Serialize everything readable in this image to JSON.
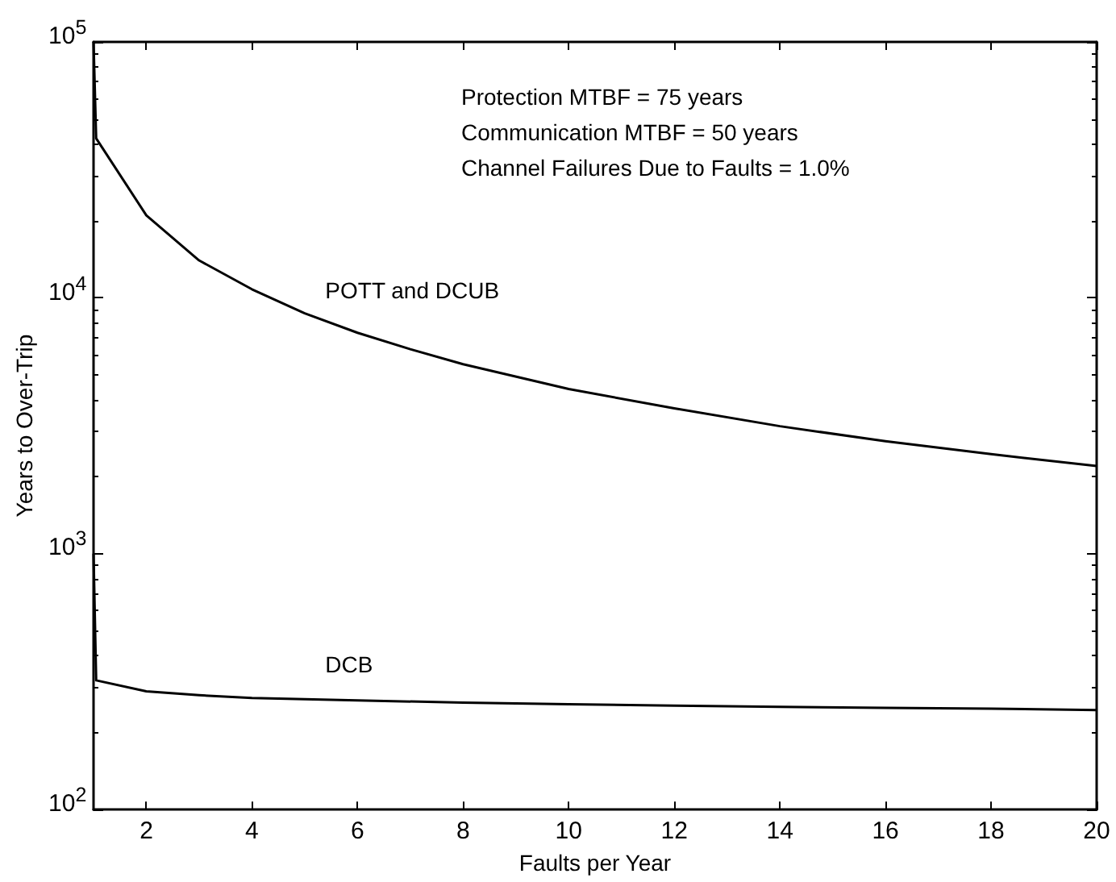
{
  "chart_data": {
    "type": "line",
    "xlabel": "Faults per Year",
    "ylabel": "Years to Over-Trip",
    "annotations": [
      "Protection MTBF = 75 years",
      "Communication MTBF = 50 years",
      "Channel Failures Due to Faults = 1.0%"
    ],
    "series": [
      {
        "name": "POTT and DCUB",
        "color": "#000000",
        "x": [
          1,
          1.05,
          2,
          3,
          4,
          5,
          6,
          7,
          8,
          10,
          12,
          14,
          16,
          18,
          20
        ],
        "values": [
          100000,
          42000,
          21000,
          14000,
          10800,
          8700,
          7300,
          6300,
          5500,
          4400,
          3700,
          3150,
          2750,
          2450,
          2200
        ]
      },
      {
        "name": "DCB",
        "color": "#000000",
        "x": [
          1,
          1.05,
          2,
          3,
          4,
          6,
          8,
          10,
          12,
          14,
          16,
          18,
          20
        ],
        "values": [
          1000,
          320,
          290,
          280,
          273,
          267,
          262,
          258,
          255,
          252,
          250,
          248,
          245
        ]
      }
    ],
    "xlim": [
      1,
      20
    ],
    "xticks": [
      2,
      4,
      6,
      8,
      10,
      12,
      14,
      16,
      18,
      20
    ],
    "ylim": [
      100,
      100000
    ],
    "yticks": [
      {
        "value": 100,
        "label": "10$^{2}$"
      },
      {
        "value": 1000,
        "label": "10$^{3}$"
      },
      {
        "value": 10000,
        "label": "10$^{4}$"
      },
      {
        "value": 100000,
        "label": "10$^{5}$"
      }
    ],
    "log": "y",
    "grid": false,
    "legend": false,
    "marker": "none",
    "line_style": "solid"
  }
}
